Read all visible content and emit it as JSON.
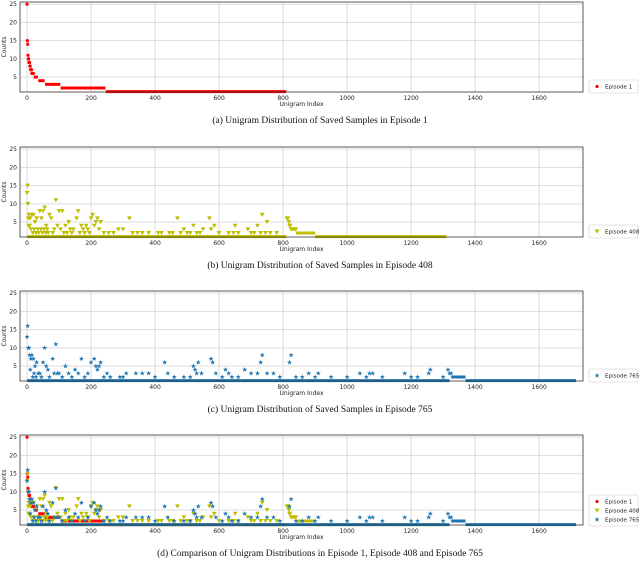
{
  "colors": {
    "episode_1": "#ff0000",
    "episode_408": "#bfbf00",
    "episode_765": "#1f77b4"
  },
  "chart_data": [
    {
      "type": "scatter",
      "caption": "(a) Unigram Distribution of Saved Samples in Episode 1",
      "xlabel": "Unigram Index",
      "ylabel": "Counts",
      "xlim": [
        -22,
        1737
      ],
      "ylim": [
        0.9,
        25.6
      ],
      "xticks": [
        0,
        200,
        400,
        600,
        800,
        1000,
        1200,
        1400,
        1600
      ],
      "yticks": [
        5,
        10,
        15,
        20,
        25
      ],
      "grid": true,
      "legend_placement": "right-bottom-outside",
      "series": [
        {
          "name": "Episode 1",
          "key": "episode_1",
          "marker": "circle",
          "points": [
            [
              0,
              25
            ],
            [
              1,
              15
            ],
            [
              2,
              14
            ],
            [
              3,
              11
            ],
            [
              4,
              10
            ],
            [
              5,
              10
            ],
            [
              6,
              9
            ],
            [
              7,
              9
            ],
            [
              8,
              9
            ],
            [
              9,
              8
            ],
            [
              10,
              8
            ],
            [
              11,
              7
            ],
            [
              12,
              7
            ],
            [
              14,
              7
            ],
            [
              15,
              6
            ],
            [
              17,
              6
            ],
            [
              19,
              6
            ],
            [
              20,
              6
            ]
          ],
          "runs": [
            [
              21,
              34,
              5
            ],
            [
              35,
              55,
              4
            ],
            [
              56,
              104,
              3
            ],
            [
              105,
              245,
              2
            ],
            [
              246,
              810,
              1
            ]
          ]
        }
      ]
    },
    {
      "type": "scatter",
      "caption": "(b) Unigram Distribution of Saved Samples in Episode 408",
      "xlabel": "Unigram Index",
      "ylabel": "Counts",
      "xlim": [
        -22,
        1737
      ],
      "ylim": [
        0.9,
        25.6
      ],
      "xticks": [
        0,
        200,
        400,
        600,
        800,
        1000,
        1200,
        1400,
        1600
      ],
      "yticks": [
        5,
        10,
        15,
        20,
        25
      ],
      "grid": true,
      "legend_placement": "right-bottom-outside",
      "series": [
        {
          "name": "Episode 408",
          "key": "episode_408",
          "marker": "triangle_down",
          "points": [
            [
              0,
              13
            ],
            [
              2,
              15
            ],
            [
              3,
              10
            ],
            [
              4,
              6
            ],
            [
              5,
              4
            ],
            [
              6,
              7
            ],
            [
              8,
              4
            ],
            [
              10,
              6
            ],
            [
              12,
              3
            ],
            [
              15,
              7
            ],
            [
              18,
              2
            ],
            [
              20,
              7
            ],
            [
              22,
              3
            ],
            [
              25,
              5
            ],
            [
              28,
              2
            ],
            [
              30,
              6
            ],
            [
              33,
              3
            ],
            [
              36,
              2
            ],
            [
              40,
              8
            ],
            [
              43,
              3
            ],
            [
              45,
              6
            ],
            [
              48,
              2
            ],
            [
              50,
              8
            ],
            [
              53,
              3
            ],
            [
              55,
              9
            ],
            [
              58,
              2
            ],
            [
              60,
              4
            ],
            [
              63,
              3
            ],
            [
              66,
              2
            ],
            [
              70,
              7
            ],
            [
              75,
              6
            ],
            [
              80,
              2
            ],
            [
              85,
              3
            ],
            [
              90,
              11
            ],
            [
              95,
              4
            ],
            [
              100,
              8
            ],
            [
              105,
              3
            ],
            [
              110,
              8
            ],
            [
              115,
              2
            ],
            [
              120,
              4
            ],
            [
              125,
              2
            ],
            [
              130,
              5
            ],
            [
              135,
              3
            ],
            [
              140,
              2
            ],
            [
              145,
              3
            ],
            [
              155,
              6
            ],
            [
              160,
              8
            ],
            [
              165,
              2
            ],
            [
              170,
              4
            ],
            [
              175,
              3
            ],
            [
              180,
              2
            ],
            [
              185,
              4
            ],
            [
              190,
              3
            ],
            [
              195,
              2
            ],
            [
              200,
              6
            ],
            [
              205,
              7
            ],
            [
              210,
              4
            ],
            [
              215,
              5
            ],
            [
              220,
              6
            ],
            [
              225,
              3
            ],
            [
              230,
              5
            ],
            [
              240,
              2
            ],
            [
              255,
              2
            ],
            [
              270,
              2
            ],
            [
              285,
              3
            ],
            [
              300,
              3
            ],
            [
              320,
              6
            ],
            [
              330,
              2
            ],
            [
              345,
              2
            ],
            [
              360,
              2
            ],
            [
              380,
              2
            ],
            [
              410,
              2
            ],
            [
              420,
              2
            ],
            [
              445,
              2
            ],
            [
              455,
              2
            ],
            [
              470,
              6
            ],
            [
              480,
              2
            ],
            [
              490,
              3
            ],
            [
              500,
              2
            ],
            [
              510,
              2
            ],
            [
              520,
              4
            ],
            [
              530,
              2
            ],
            [
              540,
              2
            ],
            [
              550,
              3
            ],
            [
              570,
              6
            ],
            [
              575,
              3
            ],
            [
              585,
              4
            ],
            [
              600,
              2
            ],
            [
              630,
              2
            ],
            [
              645,
              2
            ],
            [
              650,
              4
            ],
            [
              660,
              2
            ],
            [
              690,
              3
            ],
            [
              700,
              2
            ],
            [
              710,
              2
            ],
            [
              720,
              4
            ],
            [
              730,
              2
            ],
            [
              735,
              7
            ],
            [
              745,
              2
            ],
            [
              750,
              5
            ],
            [
              760,
              2
            ],
            [
              780,
              2
            ],
            [
              812,
              6
            ],
            [
              815,
              6
            ],
            [
              818,
              5
            ],
            [
              820,
              4
            ],
            [
              822,
              4
            ],
            [
              825,
              3
            ],
            [
              830,
              3
            ],
            [
              835,
              3
            ],
            [
              840,
              3
            ]
          ],
          "runs": [
            [
              0,
              810,
              1
            ],
            [
              840,
              900,
              2
            ],
            [
              900,
              1310,
              1
            ]
          ]
        }
      ]
    },
    {
      "type": "scatter",
      "caption": "(c) Unigram Distribution of Saved Samples in Episode 765",
      "xlabel": "Unigram Index",
      "ylabel": "Counts",
      "xlim": [
        -22,
        1737
      ],
      "ylim": [
        0.9,
        25.6
      ],
      "xticks": [
        0,
        200,
        400,
        600,
        800,
        1000,
        1200,
        1400,
        1600
      ],
      "yticks": [
        5,
        10,
        15,
        20,
        25
      ],
      "grid": true,
      "legend_placement": "right-bottom-outside",
      "series": [
        {
          "name": "Episode 765",
          "key": "episode_765",
          "marker": "star",
          "points": [
            [
              0,
              13
            ],
            [
              2,
              16
            ],
            [
              4,
              10
            ],
            [
              6,
              10
            ],
            [
              8,
              8
            ],
            [
              10,
              4
            ],
            [
              12,
              7
            ],
            [
              15,
              8
            ],
            [
              18,
              2
            ],
            [
              20,
              7
            ],
            [
              22,
              3
            ],
            [
              25,
              5
            ],
            [
              28,
              2
            ],
            [
              30,
              6
            ],
            [
              35,
              3
            ],
            [
              40,
              3
            ],
            [
              45,
              2
            ],
            [
              50,
              6
            ],
            [
              55,
              10
            ],
            [
              60,
              5
            ],
            [
              65,
              4
            ],
            [
              70,
              2
            ],
            [
              80,
              7
            ],
            [
              85,
              3
            ],
            [
              90,
              11
            ],
            [
              95,
              3
            ],
            [
              100,
              3
            ],
            [
              110,
              2
            ],
            [
              120,
              5
            ],
            [
              130,
              3
            ],
            [
              140,
              2
            ],
            [
              150,
              4
            ],
            [
              160,
              3
            ],
            [
              170,
              7
            ],
            [
              180,
              2
            ],
            [
              190,
              3
            ],
            [
              200,
              6
            ],
            [
              210,
              7
            ],
            [
              215,
              5
            ],
            [
              220,
              4
            ],
            [
              225,
              5
            ],
            [
              230,
              6
            ],
            [
              240,
              2
            ],
            [
              250,
              3
            ],
            [
              260,
              2
            ],
            [
              290,
              2
            ],
            [
              300,
              2
            ],
            [
              310,
              3
            ],
            [
              340,
              3
            ],
            [
              360,
              3
            ],
            [
              380,
              3
            ],
            [
              400,
              2
            ],
            [
              430,
              6
            ],
            [
              440,
              3
            ],
            [
              460,
              2
            ],
            [
              490,
              2
            ],
            [
              510,
              2
            ],
            [
              520,
              5
            ],
            [
              525,
              4
            ],
            [
              530,
              3
            ],
            [
              535,
              6
            ],
            [
              545,
              3
            ],
            [
              575,
              7
            ],
            [
              580,
              6
            ],
            [
              590,
              3
            ],
            [
              610,
              2
            ],
            [
              620,
              4
            ],
            [
              630,
              3
            ],
            [
              640,
              2
            ],
            [
              660,
              2
            ],
            [
              680,
              4
            ],
            [
              700,
              3
            ],
            [
              720,
              3
            ],
            [
              730,
              6
            ],
            [
              735,
              8
            ],
            [
              750,
              3
            ],
            [
              770,
              3
            ],
            [
              790,
              2
            ],
            [
              820,
              6
            ],
            [
              825,
              8
            ],
            [
              840,
              2
            ],
            [
              860,
              2
            ],
            [
              880,
              3
            ],
            [
              900,
              2
            ],
            [
              910,
              3
            ],
            [
              950,
              2
            ],
            [
              1000,
              2
            ],
            [
              1040,
              3
            ],
            [
              1060,
              2
            ],
            [
              1070,
              3
            ],
            [
              1080,
              3
            ],
            [
              1110,
              2
            ],
            [
              1180,
              3
            ],
            [
              1200,
              2
            ],
            [
              1220,
              2
            ],
            [
              1255,
              3
            ],
            [
              1260,
              4
            ],
            [
              1300,
              2
            ],
            [
              1315,
              4
            ],
            [
              1320,
              3
            ],
            [
              1325,
              3
            ]
          ],
          "runs": [
            [
              0,
              1320,
              1
            ],
            [
              1325,
              1370,
              2
            ],
            [
              1370,
              1715,
              1
            ]
          ]
        }
      ]
    },
    {
      "type": "scatter",
      "caption": "(d) Comparison of Unigram Distributions in Episode 1, Episode 408 and Episode 765",
      "xlabel": "Unigram Index",
      "ylabel": "Counts",
      "xlim": [
        -22,
        1737
      ],
      "ylim": [
        0.9,
        25.6
      ],
      "xticks": [
        0,
        200,
        400,
        600,
        800,
        1000,
        1200,
        1400,
        1600
      ],
      "yticks": [
        5,
        10,
        15,
        20,
        25
      ],
      "grid": true,
      "legend_placement": "right-bottom-outside",
      "series_ref": [
        "episode_1",
        "episode_408",
        "episode_765"
      ]
    }
  ]
}
